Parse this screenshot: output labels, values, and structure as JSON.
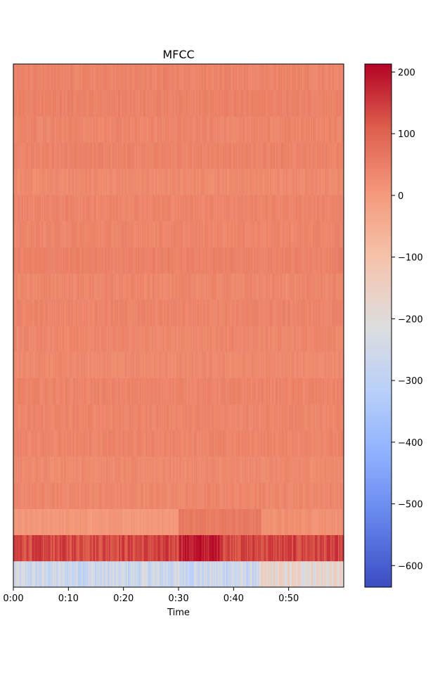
{
  "chart_data": {
    "type": "heatmap",
    "title": "MFCC",
    "xlabel": "Time",
    "ylabel": "",
    "x_ticks": [
      "0:00",
      "0:10",
      "0:20",
      "0:30",
      "0:40",
      "0:50"
    ],
    "x_tick_seconds": [
      0,
      10,
      20,
      30,
      40,
      50
    ],
    "x_range_seconds": [
      0,
      60
    ],
    "n_coefficients": 20,
    "colormap": "coolwarm",
    "colorbar": {
      "range": [
        -635,
        213
      ],
      "ticks": [
        200,
        100,
        0,
        -100,
        -200,
        -300,
        -400,
        -500,
        -600
      ],
      "tick_labels": [
        "200",
        "100",
        "0",
        "−100",
        "−200",
        "−300",
        "−400",
        "−500",
        "−600"
      ]
    },
    "row_mean_values_bottom_to_top": [
      -230,
      135,
      5,
      35,
      30,
      40,
      38,
      40,
      30,
      35,
      40,
      35,
      45,
      38,
      40,
      30,
      42,
      38,
      45,
      40
    ],
    "notable_segments": [
      {
        "row": 0,
        "x_seconds": [
          0,
          45
        ],
        "value": -260
      },
      {
        "row": 0,
        "x_seconds": [
          45,
          60
        ],
        "value": -180
      },
      {
        "row": 1,
        "x_seconds": [
          30,
          38
        ],
        "value": 185
      },
      {
        "row": 2,
        "x_seconds": [
          30,
          45
        ],
        "value": 60
      },
      {
        "row": 2,
        "x_seconds": [
          45,
          60
        ],
        "value": 20
      }
    ]
  }
}
